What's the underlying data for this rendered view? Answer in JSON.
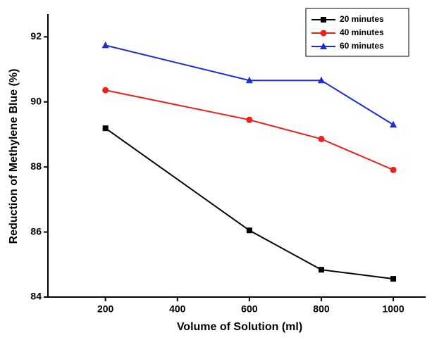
{
  "chart_data": {
    "type": "line",
    "x_label": "Volume of Solution (ml)",
    "y_label": "Reduction of Methylene Blue (%)",
    "x": [
      200,
      600,
      800,
      1000
    ],
    "series": [
      {
        "name": "20 minutes",
        "color": "#000000",
        "marker": "square",
        "values": [
          89.19,
          86.05,
          84.84,
          84.56
        ]
      },
      {
        "name": "40 minutes",
        "color": "#e8221c",
        "marker": "circle",
        "values": [
          90.36,
          89.45,
          88.86,
          87.91
        ]
      },
      {
        "name": "60 minutes",
        "color": "#1c2fd6",
        "marker": "triangle",
        "values": [
          91.74,
          90.66,
          90.66,
          89.3
        ]
      }
    ],
    "xlim": [
      40,
      1090
    ],
    "xticks": [
      200,
      400,
      600,
      800,
      1000
    ],
    "ylim": [
      84,
      92.7
    ],
    "yticks": [
      84,
      86,
      88,
      90,
      92
    ],
    "legend": "upper-right"
  }
}
